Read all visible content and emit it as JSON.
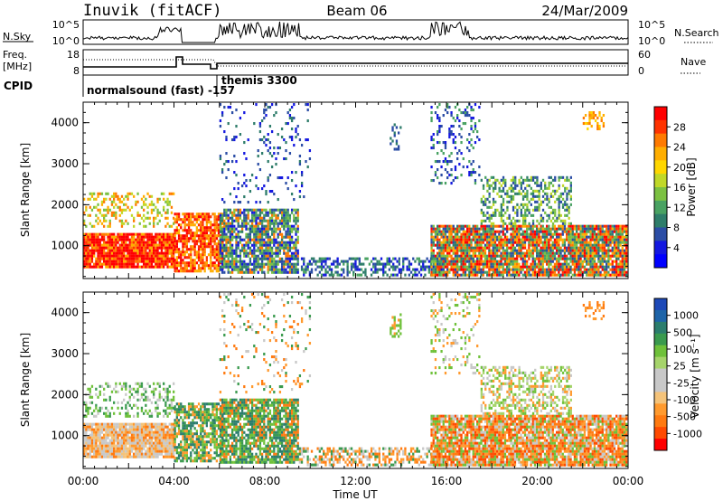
{
  "header": {
    "station": "Inuvik (fitACF)",
    "beam": "Beam 06",
    "date": "24/Mar/2009"
  },
  "top_panels": {
    "nsky_label": "N.Sky",
    "nsearch_label": "N.Search",
    "nsky_ticks": [
      "10^5",
      "10^0"
    ],
    "nsearch_ticks": [
      "10^5",
      "10^0"
    ],
    "freq_label_1": "Freq.",
    "freq_label_2": "[MHz]",
    "freq_ticks": [
      "18",
      "8"
    ],
    "nave_label": "Nave",
    "nave_ticks": [
      "60",
      "0"
    ],
    "cpid_label": "CPID",
    "cpid_mode_1": "normalsound (fast) -157",
    "cpid_mode_2": "themis 3300"
  },
  "chart_data": [
    {
      "type": "heatmap",
      "name": "power",
      "ylabel": "Slant Range [km]",
      "ylim": [
        200,
        4500
      ],
      "yticks": [
        "1000",
        "2000",
        "3000",
        "4000"
      ],
      "xlim_hours": [
        0,
        24
      ],
      "colorbar_label": "Power [dB]",
      "colorbar_ticks": [
        "28",
        "24",
        "20",
        "16",
        "12",
        "8",
        "4"
      ],
      "colorbar_colors": [
        "#ff0000",
        "#ff3300",
        "#ff7a00",
        "#ffae00",
        "#ffd700",
        "#c0d828",
        "#7cc142",
        "#49a262",
        "#2e7d6a",
        "#2b4da5",
        "#1418e0",
        "#0000ff"
      ]
    },
    {
      "type": "heatmap",
      "name": "velocity",
      "ylabel": "Slant Range [km]",
      "ylim": [
        200,
        4500
      ],
      "yticks": [
        "1000",
        "2000",
        "3000",
        "4000"
      ],
      "xlim_hours": [
        0,
        24
      ],
      "colorbar_label": "Velocity [m s⁻¹]",
      "colorbar_ticks": [
        "1000",
        "500",
        "100",
        "25",
        "-25",
        "-100",
        "-500",
        "-1000"
      ],
      "colorbar_colors": [
        "#1d49b8",
        "#1e64a8",
        "#2b7d6d",
        "#3a9a4e",
        "#6fc13a",
        "#a6d46b",
        "#c8c8c8",
        "#c8c8c8",
        "#f4c37a",
        "#ff9a2e",
        "#ff7a10",
        "#ff4a00",
        "#ff0000"
      ]
    }
  ],
  "xaxis": {
    "ticks": [
      "00:00",
      "04:00",
      "08:00",
      "12:00",
      "16:00",
      "20:00",
      "00:00"
    ],
    "label": "Time UT"
  }
}
